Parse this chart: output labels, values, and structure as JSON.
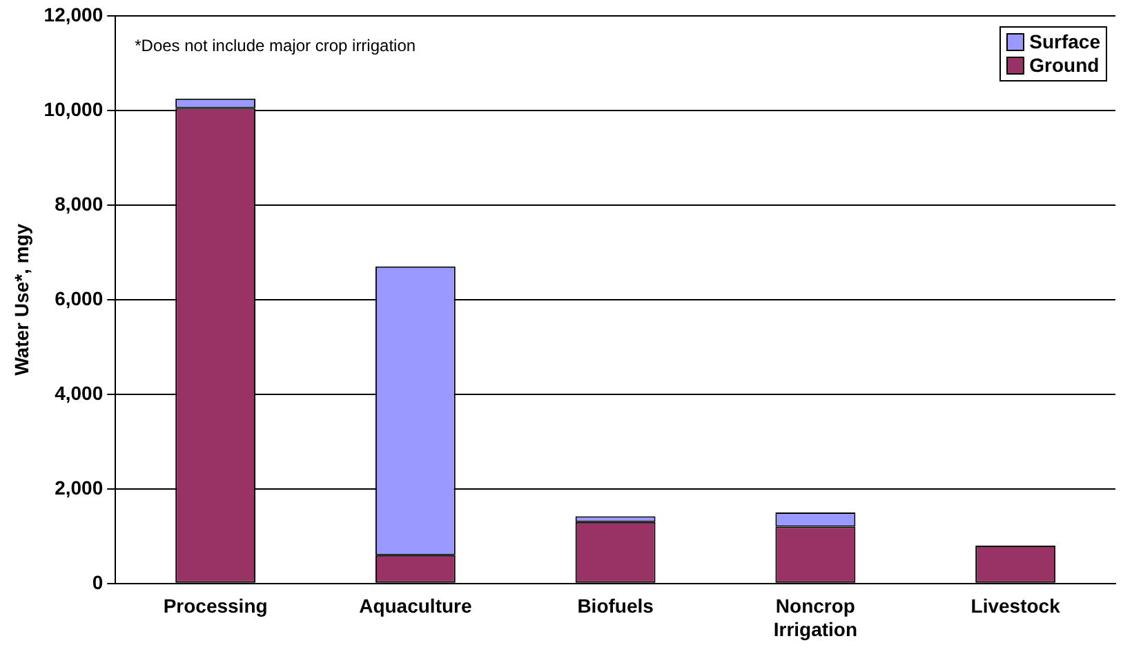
{
  "chart_data": {
    "type": "bar",
    "stacked": true,
    "ylabel": "Water Use*, mgy",
    "categories": [
      "Processing",
      "Aquaculture",
      "Biofuels",
      "Noncrop Irrigation",
      "Livestock"
    ],
    "series": [
      {
        "name": "Ground",
        "color": "#993366",
        "values": [
          10050,
          600,
          1300,
          1200,
          800
        ]
      },
      {
        "name": "Surface",
        "color": "#9999ff",
        "values": [
          200,
          6100,
          120,
          300,
          null
        ]
      }
    ],
    "ylim": [
      0,
      12000
    ],
    "yticks": [
      {
        "value": 0,
        "label": "0"
      },
      {
        "value": 2000,
        "label": "2,000"
      },
      {
        "value": 4000,
        "label": "4,000"
      },
      {
        "value": 6000,
        "label": "6,000"
      },
      {
        "value": 8000,
        "label": "8,000"
      },
      {
        "value": 10000,
        "label": "10,000"
      },
      {
        "value": 12000,
        "label": "12,000"
      }
    ],
    "grid": "y",
    "legend": "top right",
    "annotations": [
      "*Does not include major crop irrigation"
    ]
  }
}
